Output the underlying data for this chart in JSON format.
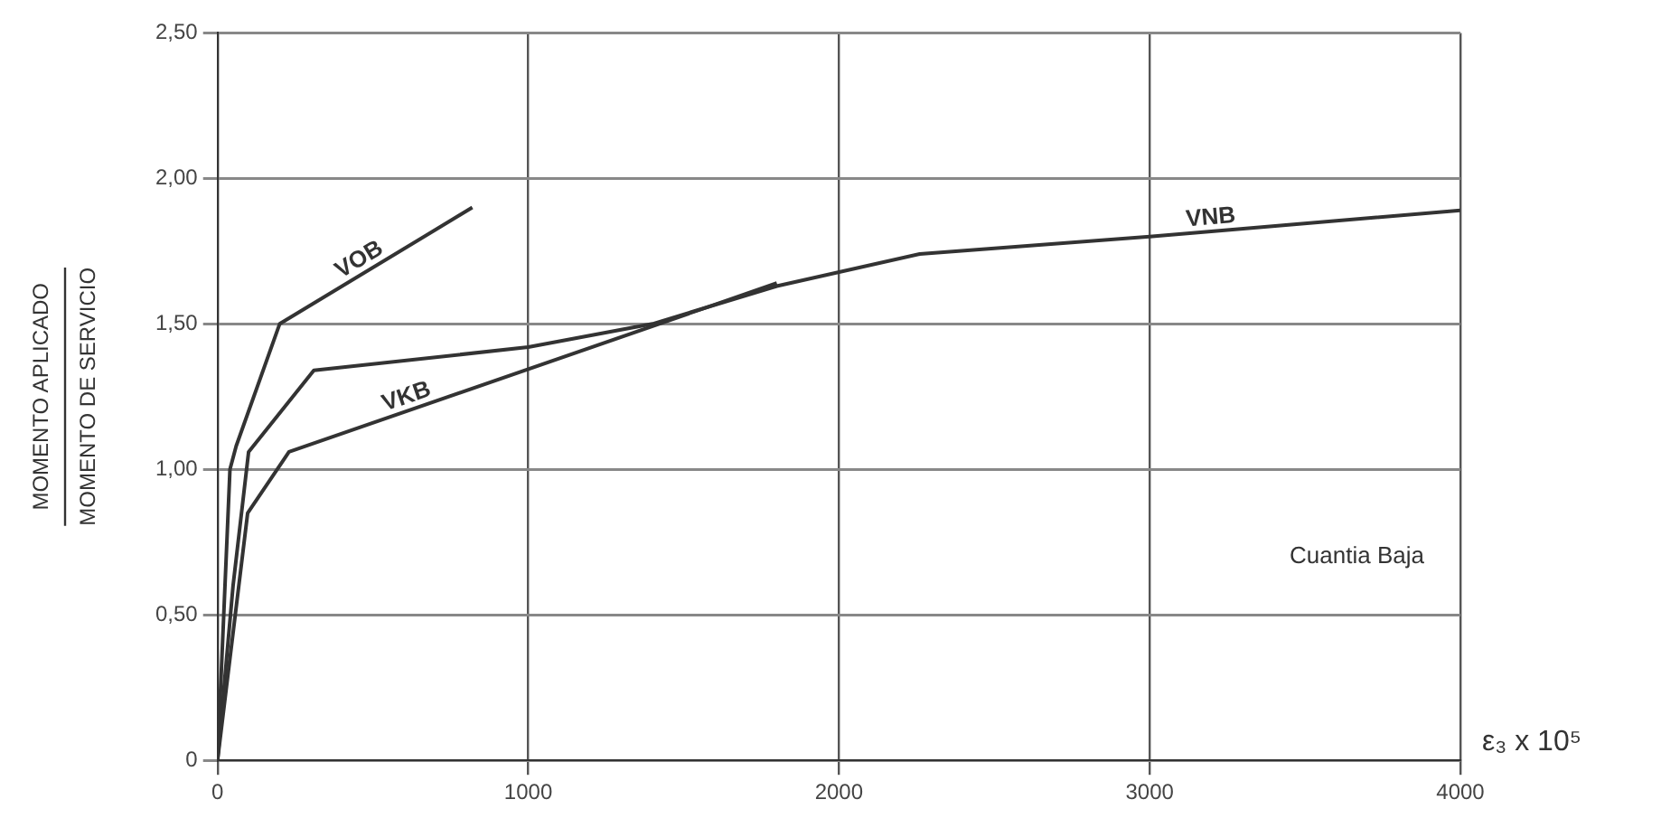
{
  "chart_data": {
    "type": "line",
    "xlabel": "ε₃ x 10⁵",
    "ylabel": "MOMENTO APLICADO\nMOMENTO DE SERVICIO",
    "xlim": [
      0,
      4000
    ],
    "xticks": [
      0,
      1000,
      2000,
      3000,
      4000
    ],
    "ylim": [
      0,
      2.5
    ],
    "yticks": [
      0,
      {
        "value": 0.5,
        "label": "0,50"
      },
      {
        "value": 1,
        "label": "1,00"
      },
      {
        "value": 1.5,
        "label": "1,50"
      },
      {
        "value": 2,
        "label": "2,00"
      },
      {
        "value": 2.5,
        "label": "2,50"
      }
    ],
    "grid": true,
    "legend": false,
    "marker": "none",
    "line_style": "solid",
    "annotations": [
      "Cuantia Baja"
    ],
    "series": [
      {
        "name": "VOB",
        "color": "#333333",
        "x": [
          0,
          40,
          60,
          200,
          820
        ],
        "values": [
          0,
          1.0,
          1.08,
          1.5,
          1.9
        ]
      },
      {
        "name": "VKB",
        "color": "#333333",
        "x": [
          0,
          97,
          230,
          1800
        ],
        "values": [
          0,
          0.85,
          1.06,
          1.64
        ]
      },
      {
        "name": "VNB",
        "color": "#333333",
        "x": [
          0,
          50,
          100,
          310,
          1000,
          1400,
          1800,
          2260,
          3000,
          4000
        ],
        "values": [
          0,
          0.6,
          1.06,
          1.34,
          1.42,
          1.5,
          1.63,
          1.74,
          1.8,
          1.89
        ]
      }
    ]
  }
}
